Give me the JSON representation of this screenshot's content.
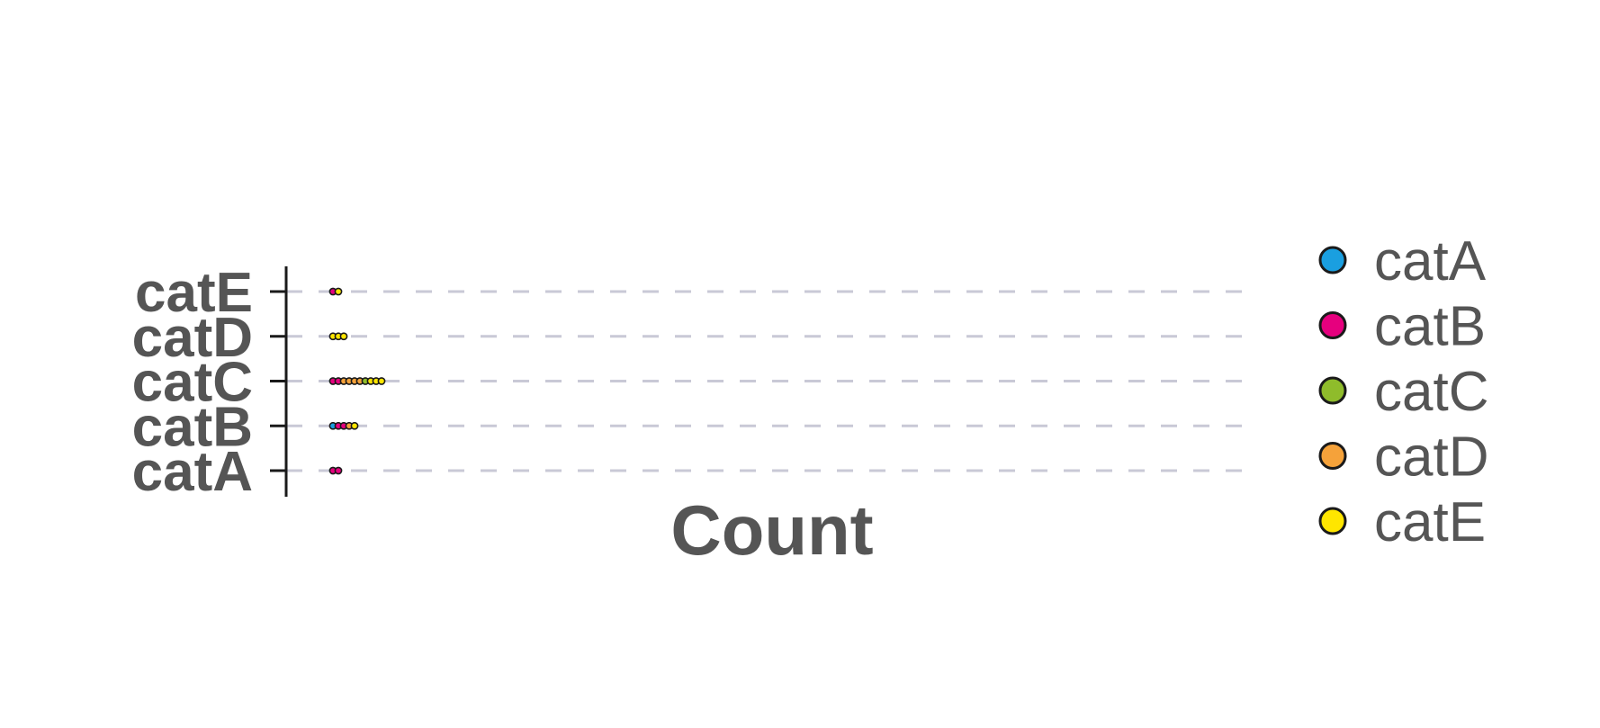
{
  "chart_data": {
    "type": "dot",
    "xlabel": "Count",
    "ylabel": "",
    "categories": [
      "catA",
      "catB",
      "catC",
      "catD",
      "catE"
    ],
    "legend": {
      "placement": "right",
      "entries": [
        {
          "name": "catA",
          "color": "#1a9fe0"
        },
        {
          "name": "catB",
          "color": "#e6007e"
        },
        {
          "name": "catC",
          "color": "#8fbc2b"
        },
        {
          "name": "catD",
          "color": "#f5a23a"
        },
        {
          "name": "catE",
          "color": "#ffe600"
        }
      ]
    },
    "rows": [
      {
        "category": "catA",
        "dots": [
          "catB",
          "catB"
        ]
      },
      {
        "category": "catB",
        "dots": [
          "catA",
          "catB",
          "catB",
          "catD",
          "catE"
        ]
      },
      {
        "category": "catC",
        "dots": [
          "catB",
          "catB",
          "catD",
          "catD",
          "catD",
          "catD",
          "catC",
          "catE",
          "catE",
          "catE"
        ]
      },
      {
        "category": "catD",
        "dots": [
          "catE",
          "catE",
          "catE"
        ]
      },
      {
        "category": "catE",
        "dots": [
          "catB",
          "catE"
        ]
      }
    ],
    "grid": true,
    "grid_style": "dashed-horizontal"
  }
}
